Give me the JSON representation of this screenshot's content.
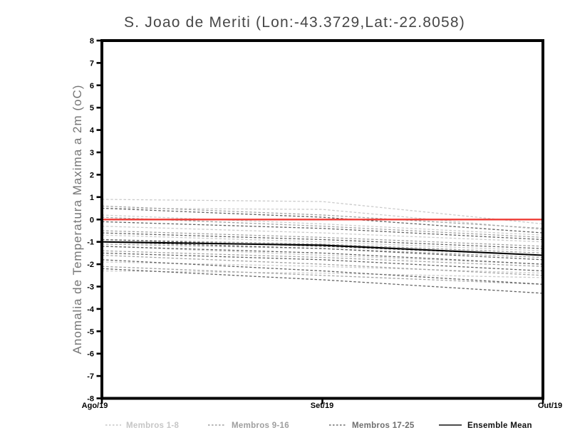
{
  "chart_data": {
    "type": "line",
    "title": "S. Joao de Meriti (Lon:-43.3729,Lat:-22.8058)",
    "ylabel": "Anomalia de Temperatura Maxima a 2m (oC)",
    "xlabel": "",
    "categories": [
      "Ago/19",
      "Set/19",
      "Out/19"
    ],
    "ylim": [
      -8,
      8
    ],
    "y_ticks": [
      8,
      7,
      6,
      5,
      4,
      3,
      2,
      1,
      0,
      -1,
      -2,
      -3,
      -4,
      -5,
      -6,
      -7,
      -8
    ],
    "grid": false,
    "axis_color": "#000000",
    "zero_line": {
      "value": 0,
      "color": "#ee3b35"
    },
    "series": [
      {
        "name": "Membros 1-8",
        "color": "#cbcbcb",
        "style": "dashed",
        "members": [
          [
            0.9,
            0.8,
            -0.2
          ],
          [
            0.5,
            0.45,
            -0.45
          ],
          [
            0.2,
            -0.2,
            -0.7
          ],
          [
            -0.3,
            -0.6,
            -1.0
          ],
          [
            -0.7,
            -1.0,
            -1.4
          ],
          [
            -1.2,
            -1.6,
            -2.0
          ],
          [
            -1.9,
            -2.1,
            -2.4
          ],
          [
            -2.3,
            -2.4,
            -2.6
          ]
        ]
      },
      {
        "name": "Membros 9-16",
        "color": "#a4a4a4",
        "style": "dashed",
        "members": [
          [
            0.6,
            0.2,
            -0.4
          ],
          [
            0.1,
            -0.3,
            -0.8
          ],
          [
            -0.5,
            -0.8,
            -1.2
          ],
          [
            -0.9,
            -1.1,
            -1.5
          ],
          [
            -1.1,
            -1.3,
            -1.7
          ],
          [
            -1.4,
            -1.7,
            -2.1
          ],
          [
            -1.6,
            -2.0,
            -2.5
          ],
          [
            -2.1,
            -2.5,
            -2.9
          ]
        ]
      },
      {
        "name": "Membros 17-25",
        "color": "#646464",
        "style": "dashed",
        "members": [
          [
            0.5,
            0.1,
            -0.6
          ],
          [
            -0.1,
            -0.4,
            -0.9
          ],
          [
            -0.6,
            -0.9,
            -1.3
          ],
          [
            -0.9,
            -1.2,
            -1.6
          ],
          [
            -1.0,
            -1.3,
            -1.8
          ],
          [
            -1.2,
            -1.5,
            -2.0
          ],
          [
            -1.5,
            -1.8,
            -2.3
          ],
          [
            -1.8,
            -2.3,
            -2.9
          ],
          [
            -2.2,
            -2.7,
            -3.3
          ]
        ]
      },
      {
        "name": "Ensemble Mean",
        "color": "#000000",
        "style": "solid",
        "members": [
          [
            -1.0,
            -1.15,
            -1.6
          ]
        ]
      }
    ],
    "legend": [
      {
        "label": "Membros 1-8",
        "color": "#c6c6c6",
        "style": "dashed"
      },
      {
        "label": "Membros 9-16",
        "color": "#9e9e9e",
        "style": "dashed"
      },
      {
        "label": "Membros 17-25",
        "color": "#6e6e6e",
        "style": "dashed"
      },
      {
        "label": "Ensemble Mean",
        "color": "#111111",
        "style": "solid"
      }
    ],
    "legend_position": "bottom"
  }
}
